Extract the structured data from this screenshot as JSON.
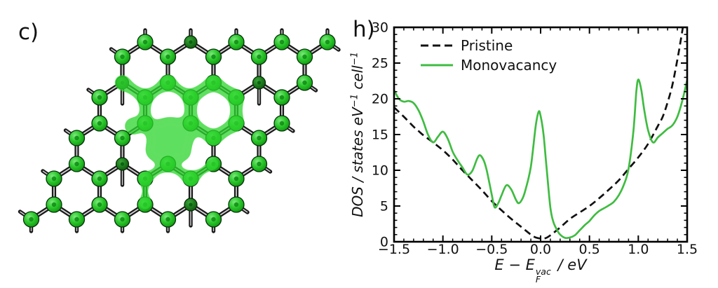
{
  "figure": {
    "background": "#ffffff",
    "panel_left": {
      "label": "c)"
    },
    "panel_right": {
      "label": "h)"
    }
  },
  "structure": {
    "type": "honeycomb-lattice-with-monovacancy",
    "rows": 5,
    "cols": 5,
    "vacancy_site": [
      2,
      2
    ],
    "dark_sites": [
      [
        0,
        1
      ],
      [
        1,
        0
      ],
      [
        1,
        3
      ],
      [
        3,
        1
      ],
      [
        4,
        3
      ]
    ],
    "colors": {
      "atom": "#2bc72b",
      "atom_dark": "#1e7a22",
      "bond": "#1a1a1a",
      "bond_core": "#d6d6d6",
      "isosurface": "#2fd62f"
    }
  },
  "chart_data": {
    "type": "line",
    "title": "",
    "xlabel": "E − E_F^vac / eV",
    "xlabel_parts": {
      "pre": "E − E",
      "sup": "vac",
      "sub": "F",
      "post": " / eV"
    },
    "ylabel": "DOS / states eV^−1 cell^−1",
    "ylabel_parts": {
      "pre": "DOS / states eV",
      "sup1": "−1",
      "mid": " cell",
      "sup2": "−1"
    },
    "xlim": [
      -1.5,
      1.5
    ],
    "ylim": [
      0,
      30
    ],
    "x_major_ticks": [
      -1.5,
      -1.0,
      -0.5,
      0.0,
      0.5,
      1.0,
      1.5
    ],
    "x_tick_labels": [
      "−1.5",
      "−1.0",
      "−0.5",
      "0.0",
      "0.5",
      "1.0",
      "1.5"
    ],
    "y_major_ticks": [
      0,
      5,
      10,
      15,
      20,
      25,
      30
    ],
    "y_tick_labels": [
      "0",
      "5",
      "10",
      "15",
      "20",
      "25",
      "30"
    ],
    "x_minor_step": 0.1,
    "y_minor_step": 1,
    "grid": false,
    "legend_position": "upper left",
    "series": [
      {
        "name": "Pristine",
        "color": "#111111",
        "style": "dashed",
        "x": [
          -1.5,
          -1.4,
          -1.3,
          -1.25,
          -1.2,
          -1.1,
          -1.0,
          -0.9,
          -0.8,
          -0.75,
          -0.7,
          -0.6,
          -0.5,
          -0.4,
          -0.3,
          -0.2,
          -0.1,
          -0.05,
          0.0,
          0.05,
          0.1,
          0.2,
          0.3,
          0.4,
          0.5,
          0.6,
          0.7,
          0.8,
          0.9,
          1.0,
          1.1,
          1.2,
          1.25,
          1.3,
          1.35,
          1.4,
          1.43,
          1.46
        ],
        "y": [
          18.8,
          17.5,
          16.1,
          15.5,
          14.9,
          13.9,
          12.8,
          11.5,
          10.0,
          9.3,
          8.6,
          7.2,
          5.7,
          4.4,
          3.2,
          2.1,
          1.0,
          0.6,
          0.45,
          0.5,
          0.9,
          2.0,
          3.2,
          4.1,
          5.0,
          6.1,
          7.3,
          8.6,
          10.2,
          11.8,
          13.7,
          16.2,
          17.5,
          19.5,
          22.0,
          25.5,
          27.8,
          30.3
        ]
      },
      {
        "name": "Monovacancy",
        "color": "#3fbc41",
        "style": "solid",
        "x": [
          -1.5,
          -1.45,
          -1.4,
          -1.35,
          -1.3,
          -1.25,
          -1.2,
          -1.15,
          -1.1,
          -1.05,
          -1.0,
          -0.95,
          -0.9,
          -0.85,
          -0.8,
          -0.75,
          -0.7,
          -0.65,
          -0.62,
          -0.58,
          -0.55,
          -0.5,
          -0.47,
          -0.43,
          -0.4,
          -0.35,
          -0.3,
          -0.25,
          -0.22,
          -0.18,
          -0.15,
          -0.1,
          -0.05,
          -0.02,
          0.0,
          0.03,
          0.06,
          0.1,
          0.13,
          0.17,
          0.2,
          0.25,
          0.3,
          0.35,
          0.4,
          0.45,
          0.5,
          0.55,
          0.6,
          0.65,
          0.7,
          0.75,
          0.8,
          0.85,
          0.9,
          0.95,
          0.98,
          1.0,
          1.03,
          1.06,
          1.1,
          1.15,
          1.2,
          1.25,
          1.3,
          1.35,
          1.4,
          1.45,
          1.5
        ],
        "y": [
          21.2,
          20.0,
          19.6,
          19.7,
          19.4,
          18.4,
          16.8,
          14.9,
          13.9,
          14.7,
          15.4,
          14.4,
          12.6,
          11.4,
          10.4,
          9.4,
          9.9,
          11.6,
          12.1,
          11.3,
          9.9,
          6.6,
          4.8,
          5.5,
          6.5,
          7.9,
          7.3,
          5.8,
          5.4,
          6.2,
          7.5,
          10.5,
          16.2,
          18.2,
          17.6,
          15.0,
          10.5,
          4.8,
          2.8,
          1.6,
          1.0,
          0.55,
          0.6,
          0.9,
          1.6,
          2.3,
          2.9,
          3.7,
          4.3,
          4.7,
          5.1,
          5.6,
          6.5,
          7.9,
          10.2,
          15.5,
          21.0,
          22.7,
          21.3,
          18.5,
          15.6,
          13.9,
          14.6,
          15.2,
          15.8,
          16.3,
          17.5,
          19.7,
          22.6
        ]
      }
    ]
  }
}
